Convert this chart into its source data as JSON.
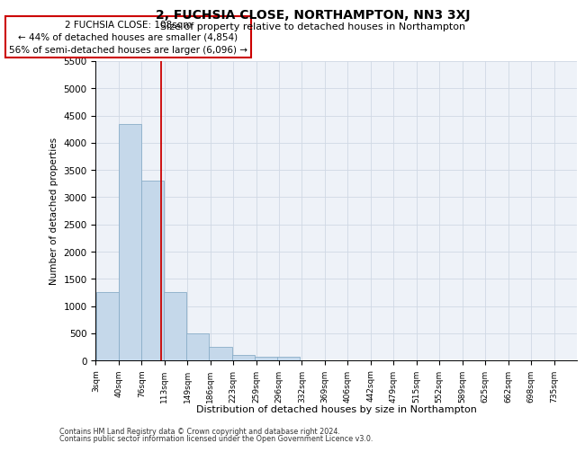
{
  "title": "2, FUCHSIA CLOSE, NORTHAMPTON, NN3 3XJ",
  "subtitle": "Size of property relative to detached houses in Northampton",
  "xlabel": "Distribution of detached houses by size in Northampton",
  "ylabel": "Number of detached properties",
  "footnote1": "Contains HM Land Registry data © Crown copyright and database right 2024.",
  "footnote2": "Contains public sector information licensed under the Open Government Licence v3.0.",
  "annotation_title": "2 FUCHSIA CLOSE: 108sqm",
  "annotation_line1": "← 44% of detached houses are smaller (4,854)",
  "annotation_line2": "56% of semi-detached houses are larger (6,096) →",
  "property_sqm": 108,
  "bin_starts": [
    3,
    40,
    76,
    113,
    149,
    186,
    223,
    259,
    296,
    332,
    369,
    406,
    442,
    479,
    515,
    552,
    589,
    625,
    662,
    698
  ],
  "bin_width": 37,
  "bar_values": [
    1250,
    4350,
    3300,
    1250,
    500,
    250,
    100,
    70,
    70,
    0,
    0,
    0,
    0,
    0,
    0,
    0,
    0,
    0,
    0,
    0
  ],
  "bar_color": "#c5d8ea",
  "bar_edge_color": "#8aaec8",
  "vline_color": "#cc0000",
  "grid_color": "#d0d8e4",
  "bg_color": "#eef2f8",
  "ylim_max": 5500,
  "yticks": [
    0,
    500,
    1000,
    1500,
    2000,
    2500,
    3000,
    3500,
    4000,
    4500,
    5000,
    5500
  ],
  "tick_labels": [
    "3sqm",
    "40sqm",
    "76sqm",
    "113sqm",
    "149sqm",
    "186sqm",
    "223sqm",
    "259sqm",
    "296sqm",
    "332sqm",
    "369sqm",
    "406sqm",
    "442sqm",
    "479sqm",
    "515sqm",
    "552sqm",
    "589sqm",
    "625sqm",
    "662sqm",
    "698sqm",
    "735sqm"
  ]
}
